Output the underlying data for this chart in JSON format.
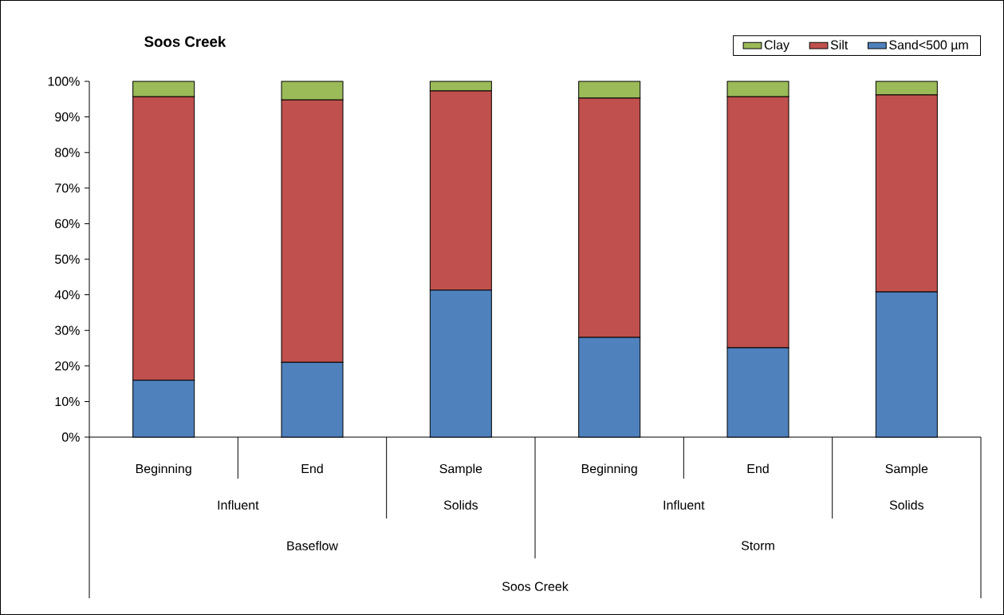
{
  "chart_data": {
    "type": "bar",
    "title": "Soos Creek",
    "categories": [
      "Beginning",
      "End",
      "Sample",
      "Beginning",
      "End",
      "Sample"
    ],
    "stacked": true,
    "series": [
      {
        "name": "Sand<500 µm",
        "color": "#4f81bd",
        "values": [
          16,
          21,
          41.3,
          28,
          25.1,
          40.8
        ]
      },
      {
        "name": "Silt",
        "color": "#c0504d",
        "values": [
          79.7,
          73.8,
          56,
          67.3,
          70.6,
          55.4
        ]
      },
      {
        "name": "Clay",
        "color": "#9bbb59",
        "values": [
          4.3,
          5.2,
          2.7,
          4.7,
          4.3,
          3.8
        ]
      }
    ],
    "ylim": [
      0,
      100
    ],
    "yticks": [
      {
        "value": 0,
        "label": "0%"
      },
      {
        "value": 10,
        "label": "10%"
      },
      {
        "value": 20,
        "label": "20%"
      },
      {
        "value": 30,
        "label": "30%"
      },
      {
        "value": 40,
        "label": "40%"
      },
      {
        "value": 50,
        "label": "50%"
      },
      {
        "value": 60,
        "label": "60%"
      },
      {
        "value": 70,
        "label": "70%"
      },
      {
        "value": 80,
        "label": "80%"
      },
      {
        "value": 90,
        "label": "90%"
      },
      {
        "value": 100,
        "label": "100%"
      }
    ],
    "grid": false,
    "legend": "top right",
    "annotations": [
      "Influent",
      "Solids",
      "Influent",
      "Solids",
      "Baseflow",
      "Storm",
      "Soos Creek"
    ]
  }
}
